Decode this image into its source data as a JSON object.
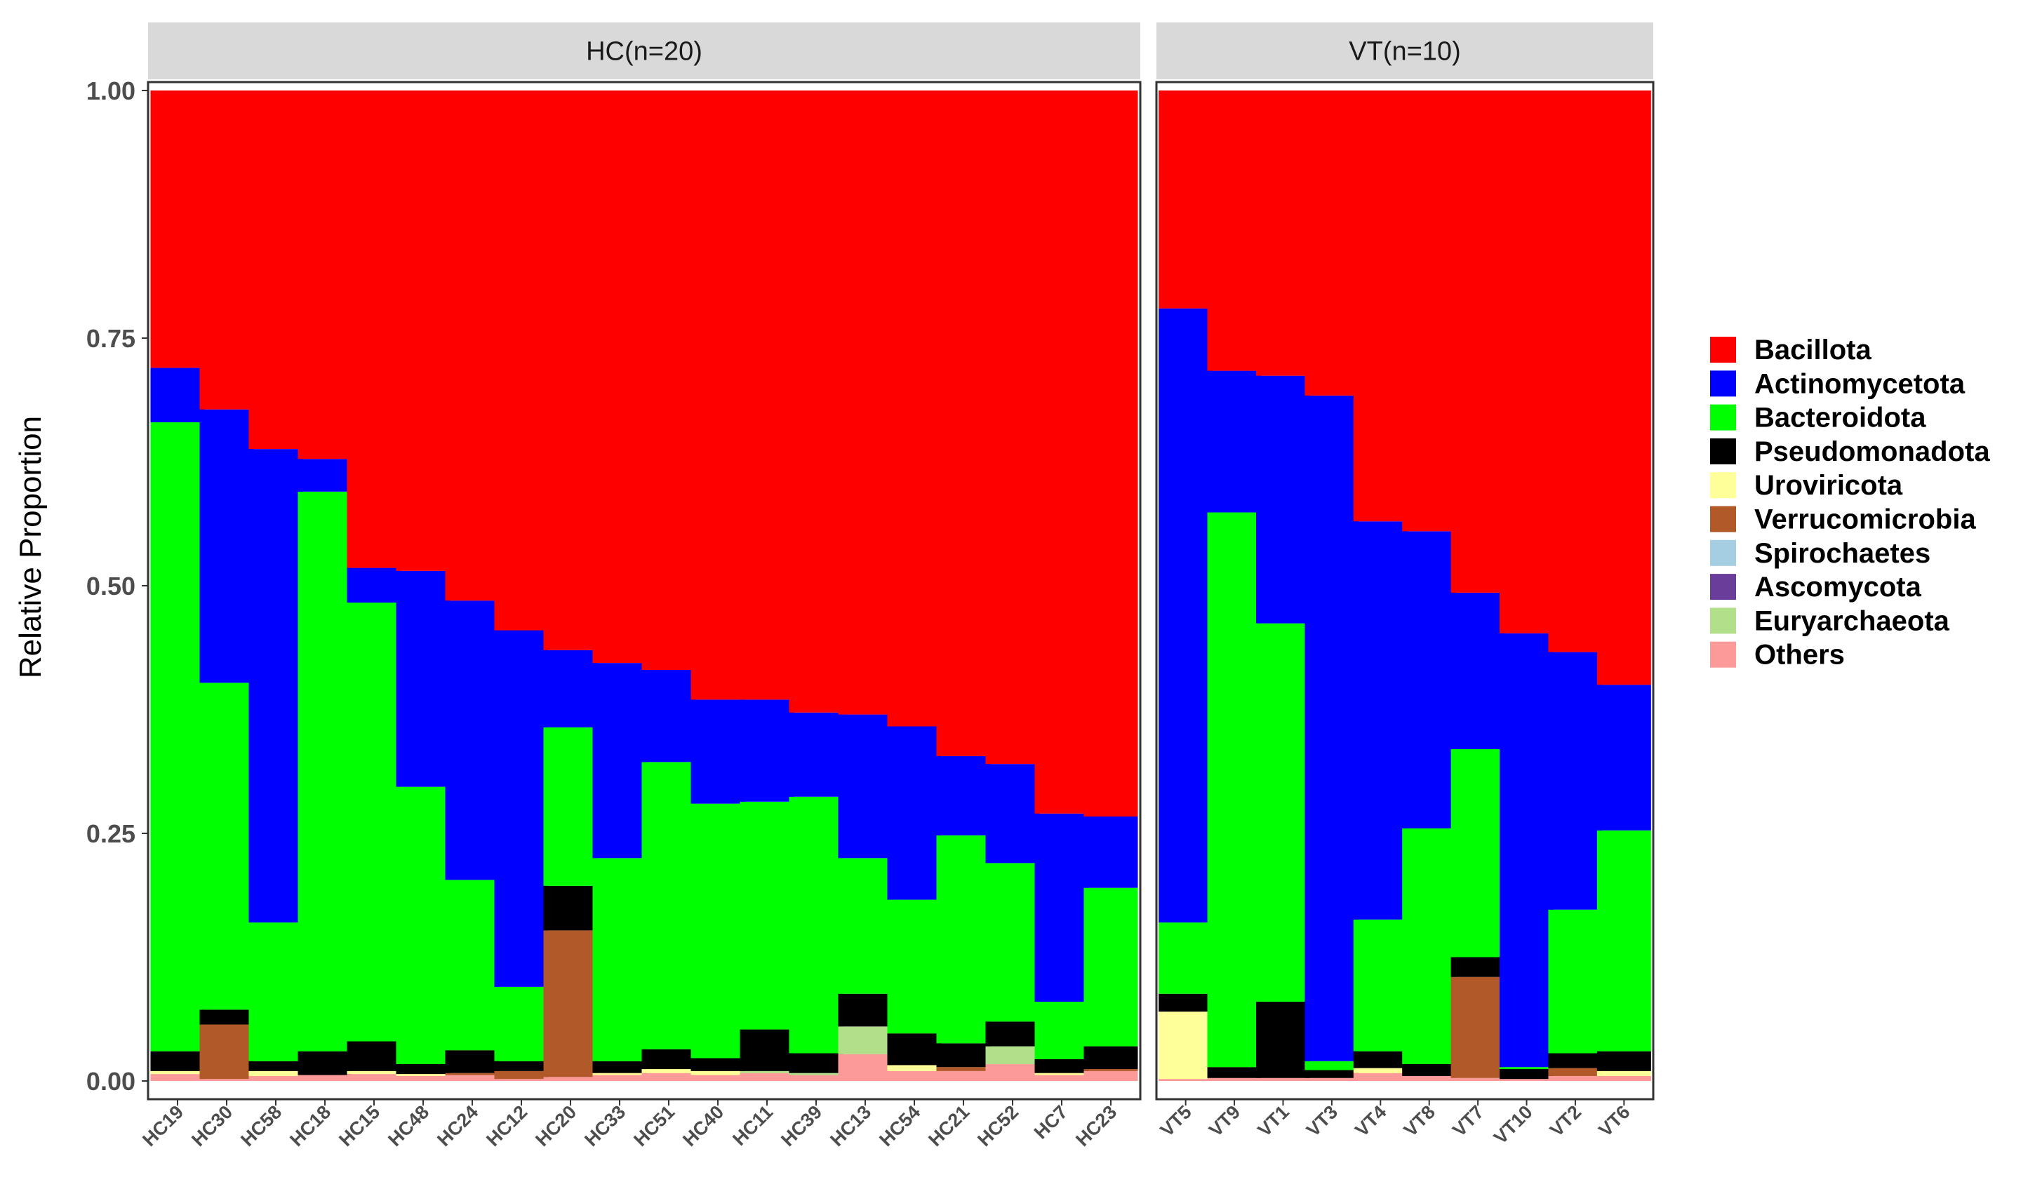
{
  "chart_data": {
    "type": "bar",
    "stacked": true,
    "ylabel": "Relative Proportion",
    "ylim": [
      0,
      1
    ],
    "yticks": [
      "0.00",
      "0.25",
      "0.50",
      "0.75",
      "1.00"
    ],
    "legend_position": "right",
    "grid": false,
    "phyla": [
      "Bacillota",
      "Actinomycetota",
      "Bacteroidota",
      "Pseudomonadota",
      "Uroviricota",
      "Verrucomicrobia",
      "Spirochaetes",
      "Ascomycota",
      "Euryarchaeota",
      "Others"
    ],
    "colors": {
      "Bacillota": "#ff0000",
      "Actinomycetota": "#0000ff",
      "Bacteroidota": "#00ff00",
      "Pseudomonadota": "#000000",
      "Uroviricota": "#ffff99",
      "Verrucomicrobia": "#b15928",
      "Spirochaetes": "#a6cee3",
      "Ascomycota": "#6a3d9a",
      "Euryarchaeota": "#b2df8a",
      "Others": "#fb9a99"
    },
    "panels": [
      {
        "label": "HC(n=20)",
        "samples": [
          {
            "name": "HC19",
            "values": {
              "Others": 0.007,
              "Uroviricota": 0.003,
              "Pseudomonadota": 0.02,
              "Bacteroidota": 0.635,
              "Actinomycetota": 0.055,
              "Bacillota": 0.28
            }
          },
          {
            "name": "HC30",
            "values": {
              "Others": 0.002,
              "Verrucomicrobia": 0.055,
              "Pseudomonadota": 0.015,
              "Bacteroidota": 0.33,
              "Actinomycetota": 0.276,
              "Bacillota": 0.322
            }
          },
          {
            "name": "HC58",
            "values": {
              "Others": 0.005,
              "Uroviricota": 0.005,
              "Pseudomonadota": 0.01,
              "Bacteroidota": 0.14,
              "Actinomycetota": 0.478,
              "Bacillota": 0.362
            }
          },
          {
            "name": "HC18",
            "values": {
              "Others": 0.006,
              "Pseudomonadota": 0.024,
              "Bacteroidota": 0.565,
              "Actinomycetota": 0.033,
              "Bacillota": 0.372
            }
          },
          {
            "name": "HC15",
            "values": {
              "Others": 0.007,
              "Uroviricota": 0.003,
              "Pseudomonadota": 0.03,
              "Bacteroidota": 0.443,
              "Actinomycetota": 0.035,
              "Bacillota": 0.482
            }
          },
          {
            "name": "HC48",
            "values": {
              "Others": 0.005,
              "Uroviricota": 0.002,
              "Pseudomonadota": 0.01,
              "Bacteroidota": 0.28,
              "Actinomycetota": 0.218,
              "Bacillota": 0.485
            }
          },
          {
            "name": "HC24",
            "values": {
              "Others": 0.006,
              "Verrucomicrobia": 0.002,
              "Pseudomonadota": 0.023,
              "Bacteroidota": 0.172,
              "Actinomycetota": 0.282,
              "Bacillota": 0.515
            }
          },
          {
            "name": "HC12",
            "values": {
              "Others": 0.002,
              "Verrucomicrobia": 0.008,
              "Pseudomonadota": 0.01,
              "Bacteroidota": 0.075,
              "Actinomycetota": 0.36,
              "Bacillota": 0.545
            }
          },
          {
            "name": "HC20",
            "values": {
              "Others": 0.004,
              "Verrucomicrobia": 0.148,
              "Pseudomonadota": 0.045,
              "Bacteroidota": 0.16,
              "Actinomycetota": 0.078,
              "Bacillota": 0.565
            }
          },
          {
            "name": "HC33",
            "values": {
              "Others": 0.006,
              "Uroviricota": 0.002,
              "Pseudomonadota": 0.012,
              "Bacteroidota": 0.205,
              "Actinomycetota": 0.197,
              "Bacillota": 0.578
            }
          },
          {
            "name": "HC51",
            "values": {
              "Others": 0.008,
              "Uroviricota": 0.004,
              "Pseudomonadota": 0.02,
              "Bacteroidota": 0.29,
              "Actinomycetota": 0.093,
              "Bacillota": 0.585
            }
          },
          {
            "name": "HC40",
            "values": {
              "Others": 0.006,
              "Uroviricota": 0.004,
              "Pseudomonadota": 0.013,
              "Bacteroidota": 0.257,
              "Actinomycetota": 0.105,
              "Bacillota": 0.615
            }
          },
          {
            "name": "HC11",
            "values": {
              "Others": 0.008,
              "Euryarchaeota": 0.002,
              "Pseudomonadota": 0.042,
              "Bacteroidota": 0.23,
              "Actinomycetota": 0.103,
              "Bacillota": 0.615
            }
          },
          {
            "name": "HC39",
            "values": {
              "Others": 0.006,
              "Euryarchaeota": 0.002,
              "Pseudomonadota": 0.02,
              "Bacteroidota": 0.259,
              "Actinomycetota": 0.085,
              "Bacillota": 0.628
            }
          },
          {
            "name": "HC13",
            "values": {
              "Others": 0.027,
              "Euryarchaeota": 0.028,
              "Pseudomonadota": 0.033,
              "Bacteroidota": 0.137,
              "Actinomycetota": 0.145,
              "Bacillota": 0.63
            }
          },
          {
            "name": "HC54",
            "values": {
              "Others": 0.01,
              "Uroviricota": 0.006,
              "Pseudomonadota": 0.032,
              "Bacteroidota": 0.135,
              "Actinomycetota": 0.175,
              "Bacillota": 0.642
            }
          },
          {
            "name": "HC21",
            "values": {
              "Others": 0.01,
              "Verrucomicrobia": 0.004,
              "Pseudomonadota": 0.024,
              "Bacteroidota": 0.21,
              "Actinomycetota": 0.08,
              "Bacillota": 0.672
            }
          },
          {
            "name": "HC52",
            "values": {
              "Others": 0.017,
              "Euryarchaeota": 0.018,
              "Pseudomonadota": 0.025,
              "Bacteroidota": 0.16,
              "Actinomycetota": 0.1,
              "Bacillota": 0.68
            }
          },
          {
            "name": "HC7",
            "values": {
              "Others": 0.006,
              "Uroviricota": 0.002,
              "Pseudomonadota": 0.014,
              "Bacteroidota": 0.058,
              "Actinomycetota": 0.19,
              "Bacillota": 0.73
            }
          },
          {
            "name": "HC23",
            "values": {
              "Others": 0.01,
              "Verrucomicrobia": 0.002,
              "Pseudomonadota": 0.023,
              "Bacteroidota": 0.16,
              "Actinomycetota": 0.072,
              "Bacillota": 0.733
            }
          }
        ]
      },
      {
        "label": "VT(n=10)",
        "samples": [
          {
            "name": "VT5",
            "values": {
              "Others": 0.002,
              "Uroviricota": 0.068,
              "Pseudomonadota": 0.018,
              "Bacteroidota": 0.072,
              "Actinomycetota": 0.62,
              "Bacillota": 0.22
            }
          },
          {
            "name": "VT9",
            "values": {
              "Others": 0.003,
              "Pseudomonadota": 0.011,
              "Bacteroidota": 0.56,
              "Actinomycetota": 0.143,
              "Bacillota": 0.283
            }
          },
          {
            "name": "VT1",
            "values": {
              "Others": 0.003,
              "Pseudomonadota": 0.077,
              "Bacteroidota": 0.382,
              "Actinomycetota": 0.25,
              "Bacillota": 0.288
            }
          },
          {
            "name": "VT3",
            "values": {
              "Others": 0.003,
              "Pseudomonadota": 0.008,
              "Bacteroidota": 0.009,
              "Actinomycetota": 0.672,
              "Bacillota": 0.308
            }
          },
          {
            "name": "VT4",
            "values": {
              "Others": 0.008,
              "Uroviricota": 0.005,
              "Pseudomonadota": 0.017,
              "Bacteroidota": 0.133,
              "Actinomycetota": 0.402,
              "Bacillota": 0.435
            }
          },
          {
            "name": "VT8",
            "values": {
              "Others": 0.005,
              "Pseudomonadota": 0.012,
              "Bacteroidota": 0.238,
              "Actinomycetota": 0.3,
              "Bacillota": 0.445
            }
          },
          {
            "name": "VT7",
            "values": {
              "Others": 0.003,
              "Verrucomicrobia": 0.102,
              "Pseudomonadota": 0.02,
              "Bacteroidota": 0.21,
              "Actinomycetota": 0.158,
              "Bacillota": 0.507
            }
          },
          {
            "name": "VT10",
            "values": {
              "Others": 0.002,
              "Pseudomonadota": 0.01,
              "Bacteroidota": 0.002,
              "Actinomycetota": 0.438,
              "Bacillota": 0.548
            }
          },
          {
            "name": "VT2",
            "values": {
              "Others": 0.005,
              "Verrucomicrobia": 0.008,
              "Pseudomonadota": 0.015,
              "Bacteroidota": 0.145,
              "Actinomycetota": 0.26,
              "Bacillota": 0.567
            }
          },
          {
            "name": "VT6",
            "values": {
              "Others": 0.005,
              "Uroviricota": 0.005,
              "Pseudomonadota": 0.02,
              "Bacteroidota": 0.223,
              "Actinomycetota": 0.147,
              "Bacillota": 0.6
            }
          }
        ]
      }
    ]
  }
}
